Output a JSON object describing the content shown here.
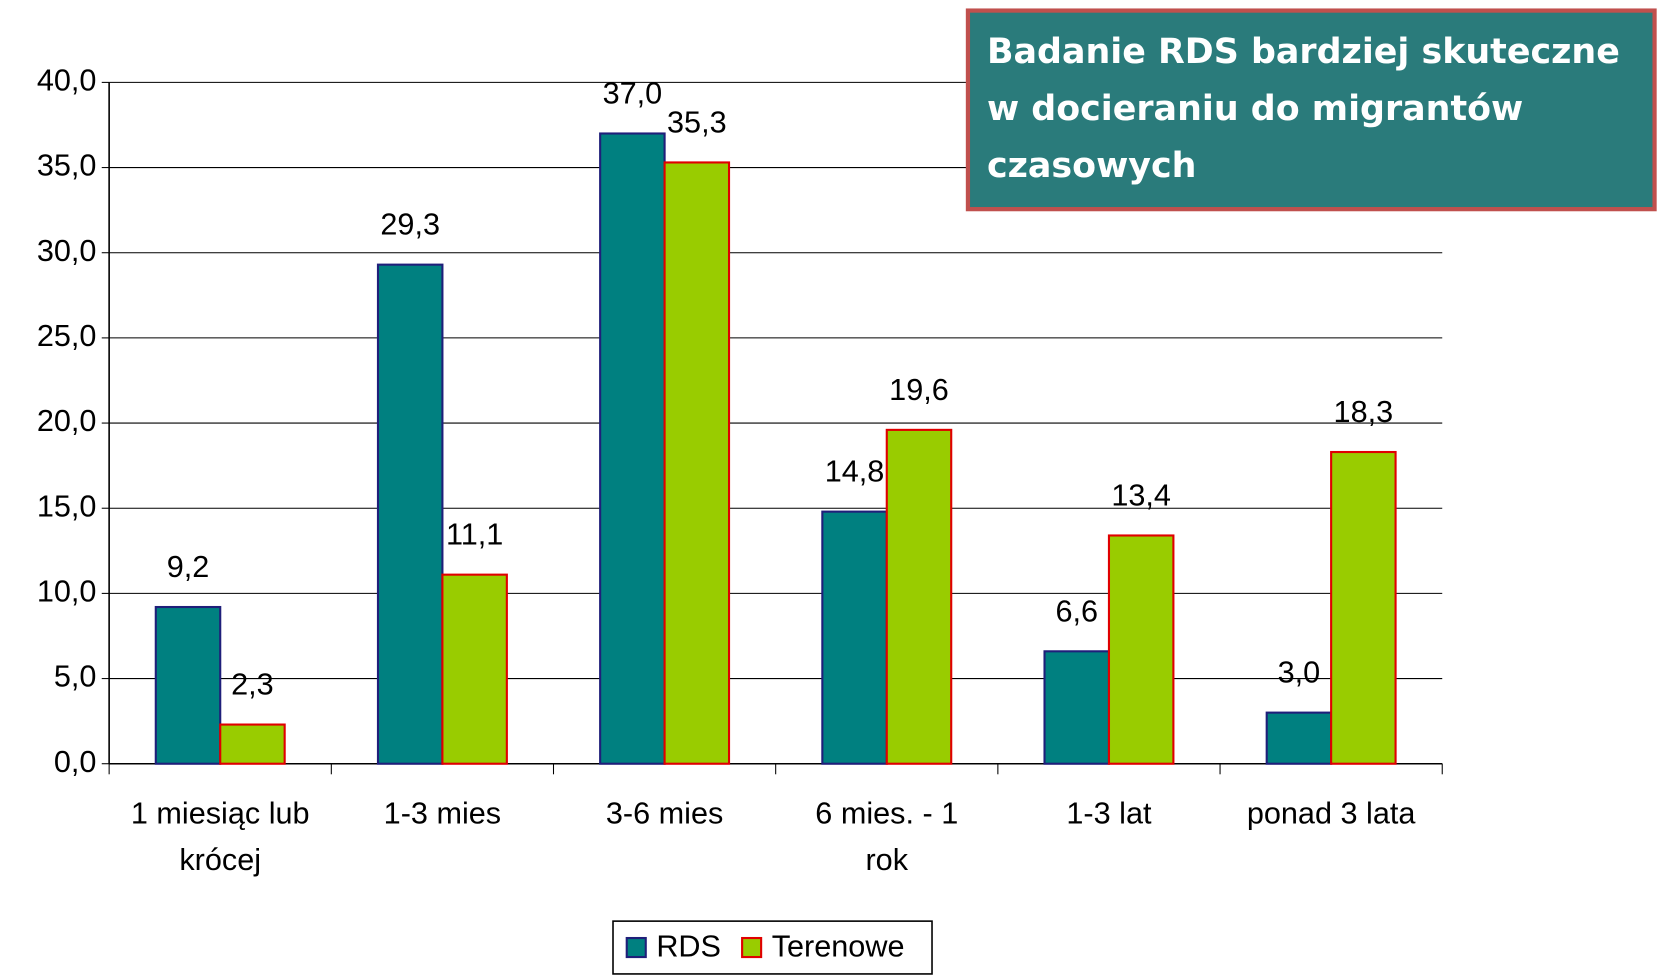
{
  "chart_data": {
    "type": "bar",
    "categories": [
      [
        "1 miesiąc lub",
        "krócej"
      ],
      [
        "1-3 mies"
      ],
      [
        "3-6 mies"
      ],
      [
        "6 mies. - 1",
        "rok"
      ],
      [
        "1-3 lat"
      ],
      [
        "ponad 3 lata"
      ]
    ],
    "series": [
      {
        "name": "RDS",
        "color": "#008080",
        "edge": "#1f1f7a",
        "values": [
          9.2,
          29.3,
          37.0,
          14.8,
          6.6,
          3.0
        ],
        "value_labels": [
          "9,2",
          "29,3",
          "37,0",
          "14,8",
          "6,6",
          "3,0"
        ]
      },
      {
        "name": "Terenowe",
        "color": "#99cc00",
        "edge": "#e00000",
        "values": [
          2.3,
          11.1,
          35.3,
          19.6,
          13.4,
          18.3
        ],
        "value_labels": [
          "2,3",
          "11,1",
          "35,3",
          "19,6",
          "13,4",
          "18,3"
        ]
      }
    ],
    "ylim": [
      0,
      40
    ],
    "yticks": [
      {
        "value": 0,
        "label": "0,0"
      },
      {
        "value": 5,
        "label": "5,0"
      },
      {
        "value": 10,
        "label": "10,0"
      },
      {
        "value": 15,
        "label": "15,0"
      },
      {
        "value": 20,
        "label": "20,0"
      },
      {
        "value": 25,
        "label": "25,0"
      },
      {
        "value": 30,
        "label": "30,0"
      },
      {
        "value": 35,
        "label": "35,0"
      },
      {
        "value": 40,
        "label": "40,0"
      }
    ],
    "grid": true,
    "legend": "bottom",
    "annotation": [
      "Badanie RDS bardziej skuteczne",
      "w docieraniu do migrantów",
      "czasowych"
    ]
  }
}
